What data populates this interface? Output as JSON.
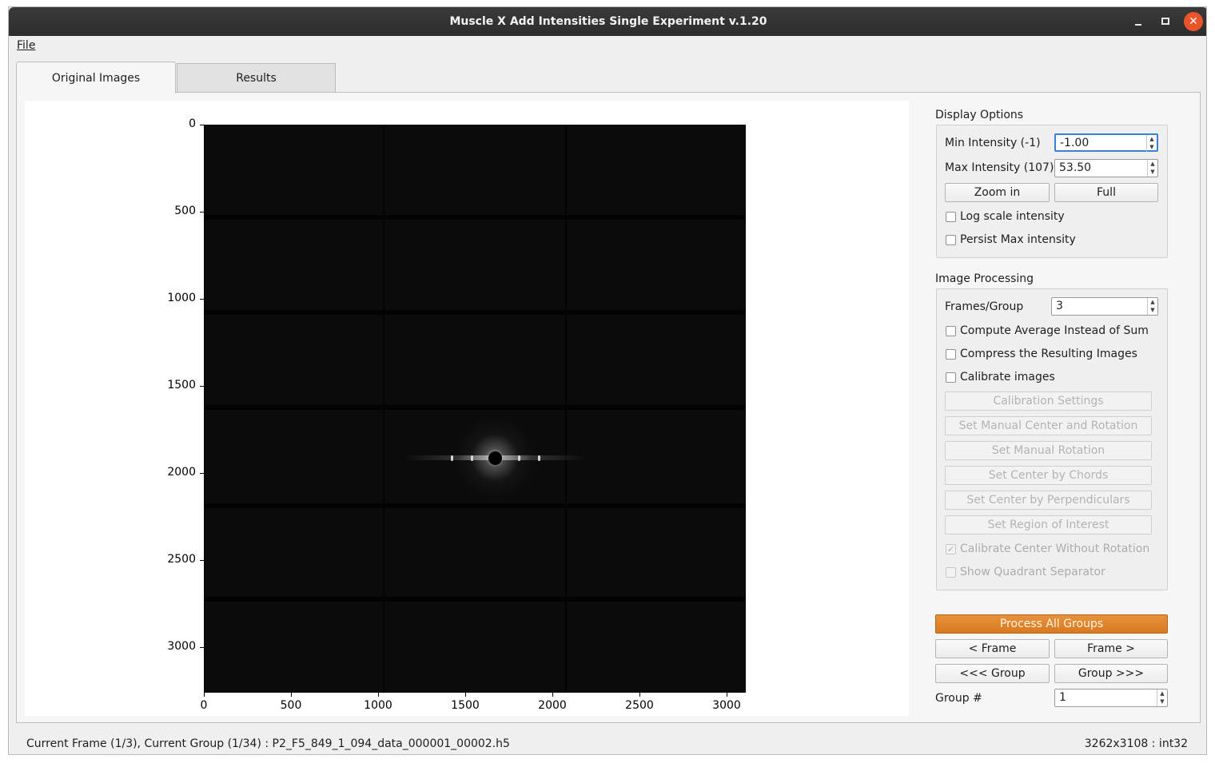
{
  "window": {
    "title": "Muscle X Add Intensities Single Experiment v.1.20"
  },
  "menu": {
    "file": "File"
  },
  "tabs": [
    {
      "label": "Original Images",
      "active": true
    },
    {
      "label": "Results",
      "active": false
    }
  ],
  "plot": {
    "y_ticks": [
      "0",
      "500",
      "1000",
      "1500",
      "2000",
      "2500",
      "3000"
    ],
    "x_ticks": [
      "0",
      "500",
      "1000",
      "1500",
      "2000",
      "2500",
      "3000"
    ],
    "image_width": 3108,
    "image_height": 3262
  },
  "display_options": {
    "title": "Display Options",
    "min_label": "Min Intensity (-1)",
    "min_value": "-1.00",
    "max_label": "Max Intensity (107)",
    "max_value": "53.50",
    "zoom_in": "Zoom in",
    "full": "Full",
    "log_scale": "Log scale intensity",
    "persist_max": "Persist Max intensity"
  },
  "image_processing": {
    "title": "Image Processing",
    "frames_label": "Frames/Group",
    "frames_value": "3",
    "compute_average": "Compute Average Instead of Sum",
    "compress": "Compress the Resulting Images",
    "calibrate": "Calibrate images",
    "calibration_settings": "Calibration Settings",
    "manual_center_rotation": "Set Manual Center and Rotation",
    "manual_rotation": "Set Manual Rotation",
    "center_chords": "Set Center by Chords",
    "center_perpendiculars": "Set Center by Perpendiculars",
    "region_of_interest": "Set Region of Interest",
    "calibrate_center": "Calibrate Center Without Rotation",
    "calibrate_center_checked": true,
    "quadrant_separator": "Show Quadrant Separator"
  },
  "navigation": {
    "process_all": "Process All Groups",
    "prev_frame": "< Frame",
    "next_frame": "Frame >",
    "prev_group": "<<< Group",
    "next_group": "Group >>>",
    "group_label": "Group #",
    "group_value": "1"
  },
  "status": {
    "left": "Current Frame (1/3), Current Group (1/34) : P2_F5_849_1_094_data_000001_00002.h5",
    "right": "3262x3108 : int32"
  },
  "colors": {
    "accent": "#de8428",
    "image_background": "#0b0b0b"
  }
}
